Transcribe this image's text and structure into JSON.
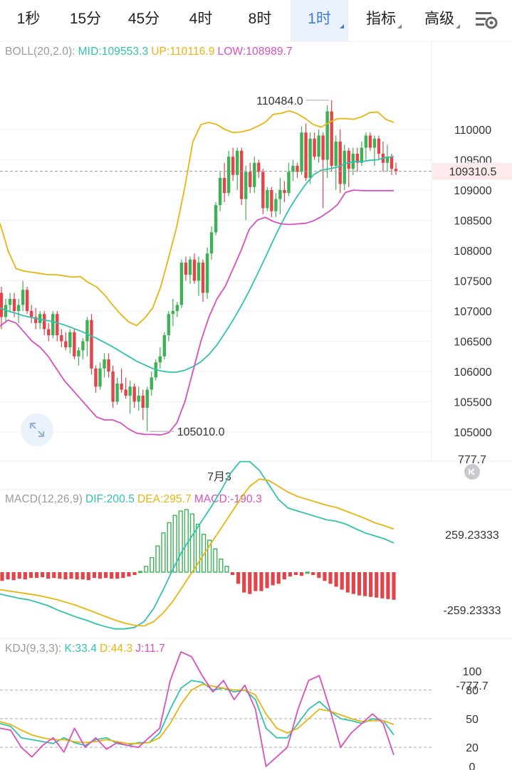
{
  "tabs": [
    {
      "label": "1秒",
      "active": false,
      "dropdown": false
    },
    {
      "label": "15分",
      "active": false,
      "dropdown": false
    },
    {
      "label": "45分",
      "active": false,
      "dropdown": false
    },
    {
      "label": "4时",
      "active": false,
      "dropdown": false
    },
    {
      "label": "8时",
      "active": false,
      "dropdown": false
    },
    {
      "label": "1时",
      "active": true,
      "dropdown": true
    },
    {
      "label": "指标",
      "active": false,
      "dropdown": true
    },
    {
      "label": "高级",
      "active": false,
      "dropdown": true
    }
  ],
  "settings_icon": "settings-gear-icon",
  "fullscreen_icon": "expand-arrows-icon",
  "scroll_latest_icon": "scroll-to-latest-icon",
  "colors": {
    "up": "#3db254",
    "down": "#e0454b",
    "mid": "#30c2b0",
    "upper": "#e8b50e",
    "lower": "#d94fbf",
    "active_tab": "#3a7bd5"
  },
  "boll": {
    "label": "BOLL(20,2.0):",
    "mid": "MID:109553.3",
    "up": "UP:110116.9",
    "low": "LOW:108989.7"
  },
  "macd": {
    "label": "MACD(12,26,9)",
    "dif": "DIF:200.5",
    "dea": "DEA:295.7",
    "macd": "MACD:-190.3"
  },
  "kdj": {
    "label": "KDJ(9,3,3):",
    "k": "K:33.4",
    "d": "D:44.3",
    "j": "J:11.7"
  },
  "chart_data": [
    {
      "type": "candlestick",
      "title": "BOLL(20,2.0)",
      "y_ticks": [
        "110000",
        "109500",
        "109000",
        "108500",
        "108000",
        "107500",
        "107000",
        "106500",
        "106000",
        "105500",
        "105000"
      ],
      "ylim": [
        104800,
        110800
      ],
      "x_label": "7月3",
      "current_price": "109310.5",
      "high_marker": "110484.0",
      "low_marker": "105010.0",
      "candles": [
        [
          107300,
          107400,
          106700,
          106900
        ],
        [
          106900,
          107200,
          106800,
          107100
        ],
        [
          107100,
          107300,
          107000,
          107200
        ],
        [
          107200,
          107300,
          106900,
          107000
        ],
        [
          107000,
          107200,
          106800,
          107100
        ],
        [
          107100,
          107500,
          107000,
          107350
        ],
        [
          107350,
          107400,
          106950,
          107000
        ],
        [
          107000,
          107100,
          106800,
          106900
        ],
        [
          106900,
          107050,
          106700,
          106800
        ],
        [
          106800,
          107000,
          106700,
          106950
        ],
        [
          106950,
          107000,
          106600,
          106700
        ],
        [
          106700,
          106800,
          106500,
          106600
        ],
        [
          106600,
          107000,
          106550,
          106950
        ],
        [
          106950,
          107000,
          106500,
          106600
        ],
        [
          106600,
          106700,
          106400,
          106500
        ],
        [
          106500,
          106650,
          106350,
          106400
        ],
        [
          106400,
          106700,
          106300,
          106650
        ],
        [
          106650,
          106700,
          106200,
          106250
        ],
        [
          106250,
          106400,
          106100,
          106350
        ],
        [
          106350,
          106550,
          106200,
          106500
        ],
        [
          106500,
          106900,
          106250,
          106850
        ],
        [
          106850,
          106950,
          105950,
          106050
        ],
        [
          106050,
          106100,
          105650,
          105750
        ],
        [
          105750,
          106150,
          105700,
          106050
        ],
        [
          106050,
          106300,
          105900,
          106200
        ],
        [
          106200,
          106300,
          105900,
          106000
        ],
        [
          106000,
          106100,
          105400,
          105500
        ],
        [
          105500,
          105900,
          105450,
          105800
        ],
        [
          105800,
          106050,
          105650,
          105700
        ],
        [
          105700,
          105900,
          105550,
          105600
        ],
        [
          105600,
          105850,
          105300,
          105750
        ],
        [
          105750,
          105800,
          105400,
          105500
        ],
        [
          105500,
          105750,
          105350,
          105600
        ],
        [
          105600,
          105700,
          105200,
          105400
        ],
        [
          105400,
          105750,
          105010,
          105700
        ],
        [
          105700,
          106000,
          105600,
          105900
        ],
        [
          105900,
          106200,
          105850,
          106150
        ],
        [
          106150,
          106400,
          106050,
          106250
        ],
        [
          106250,
          106650,
          106200,
          106600
        ],
        [
          106600,
          107000,
          106500,
          106950
        ],
        [
          106950,
          107200,
          106750,
          107000
        ],
        [
          107000,
          107150,
          106900,
          107100
        ],
        [
          107100,
          107850,
          107050,
          107800
        ],
        [
          107800,
          107900,
          107500,
          107600
        ],
        [
          107600,
          107900,
          107450,
          107850
        ],
        [
          107850,
          107950,
          107450,
          107500
        ],
        [
          107500,
          107900,
          107250,
          107800
        ],
        [
          107800,
          107850,
          107150,
          107300
        ],
        [
          107300,
          108050,
          107200,
          107950
        ],
        [
          107950,
          108400,
          107850,
          108300
        ],
        [
          108300,
          108800,
          108250,
          108750
        ],
        [
          108750,
          109300,
          108650,
          109200
        ],
        [
          109200,
          109450,
          108800,
          108950
        ],
        [
          108950,
          109650,
          108900,
          109550
        ],
        [
          109550,
          109700,
          109150,
          109250
        ],
        [
          109250,
          109700,
          109000,
          109650
        ],
        [
          109650,
          109700,
          108750,
          108850
        ],
        [
          108850,
          109400,
          108500,
          109300
        ],
        [
          109300,
          109450,
          108950,
          109050
        ],
        [
          109050,
          109550,
          108950,
          109450
        ],
        [
          109450,
          109500,
          109200,
          109300
        ],
        [
          109300,
          109350,
          108600,
          108700
        ],
        [
          108700,
          109050,
          108650,
          109000
        ],
        [
          109000,
          109050,
          108550,
          108650
        ],
        [
          108650,
          108950,
          108550,
          108850
        ],
        [
          108850,
          109200,
          108600,
          109000
        ],
        [
          109000,
          109150,
          108800,
          108950
        ],
        [
          108950,
          109450,
          108900,
          109300
        ],
        [
          109300,
          109500,
          109150,
          109400
        ],
        [
          109400,
          109450,
          109200,
          109300
        ],
        [
          109300,
          110050,
          109250,
          109950
        ],
        [
          109950,
          110100,
          109150,
          109200
        ],
        [
          109200,
          109950,
          109100,
          109850
        ],
        [
          109850,
          109950,
          109500,
          109550
        ],
        [
          109550,
          110000,
          109450,
          109900
        ],
        [
          109900,
          109950,
          108700,
          109500
        ],
        [
          109500,
          110400,
          109200,
          110300
        ],
        [
          110300,
          110484,
          109300,
          109400
        ],
        [
          109400,
          109900,
          109000,
          109800
        ],
        [
          109800,
          110000,
          108950,
          109100
        ],
        [
          109100,
          109750,
          109000,
          109650
        ],
        [
          109650,
          109700,
          109050,
          109350
        ],
        [
          109350,
          109700,
          109250,
          109600
        ],
        [
          109600,
          109700,
          109300,
          109450
        ],
        [
          109450,
          109800,
          109400,
          109700
        ],
        [
          109700,
          109950,
          109500,
          109900
        ],
        [
          109900,
          109950,
          109650,
          109700
        ],
        [
          109700,
          109900,
          109400,
          109850
        ],
        [
          109850,
          109900,
          109500,
          109600
        ],
        [
          109600,
          109800,
          109300,
          109450
        ],
        [
          109450,
          109750,
          109300,
          109550
        ],
        [
          109550,
          109600,
          109250,
          109350
        ],
        [
          109350,
          109450,
          109250,
          109310
        ]
      ],
      "series": [
        {
          "name": "MID",
          "values": [
            107050,
            107000,
            106960,
            106920,
            106890,
            106860,
            106840,
            106810,
            106770,
            106720,
            106670,
            106610,
            106550,
            106480,
            106410,
            106330,
            106250,
            106170,
            106110,
            106050,
            106010,
            105990,
            105990,
            106020,
            106080,
            106160,
            106280,
            106440,
            106640,
            106850,
            107080,
            107330,
            107600,
            107880,
            108170,
            108440,
            108690,
            108900,
            109090,
            109250,
            109330,
            109350,
            109380,
            109440,
            109470,
            109470,
            109490,
            109500,
            109540,
            109553
          ]
        },
        {
          "name": "UP",
          "values": [
            108450,
            108000,
            107700,
            107660,
            107640,
            107620,
            107600,
            107600,
            107580,
            107560,
            107570,
            107470,
            107400,
            107270,
            107100,
            106950,
            106820,
            106760,
            106880,
            107050,
            107400,
            107890,
            108400,
            109050,
            109800,
            110080,
            110120,
            110080,
            110000,
            109950,
            109960,
            109990,
            110050,
            110120,
            110250,
            110270,
            110310,
            110260,
            110180,
            110080,
            110040,
            110120,
            110180,
            110180,
            110170,
            110210,
            110280,
            110290,
            110170,
            110117
          ]
        },
        {
          "name": "LOW",
          "values": [
            106750,
            106850,
            106800,
            106650,
            106500,
            106400,
            106250,
            106050,
            105850,
            105700,
            105550,
            105400,
            105250,
            105200,
            105200,
            105150,
            105050,
            104980,
            104960,
            104960,
            104950,
            104990,
            105150,
            105500,
            106000,
            106500,
            106900,
            107200,
            107400,
            107700,
            108000,
            108350,
            108500,
            108550,
            108480,
            108440,
            108430,
            108440,
            108450,
            108490,
            108560,
            108650,
            108760,
            108960,
            109000,
            108990,
            108990,
            108990,
            108990,
            108990
          ]
        }
      ]
    },
    {
      "type": "bar",
      "title": "MACD(12,26,9)",
      "y_ticks": [
        "777.7",
        "259.23333",
        "-259.23333",
        "-777.7"
      ],
      "ylim": [
        -900,
        900
      ],
      "series": [
        {
          "name": "MACD",
          "values": [
            -60,
            -50,
            -55,
            -45,
            -50,
            -40,
            -40,
            -35,
            -45,
            -40,
            -45,
            -50,
            -45,
            -50,
            -50,
            -55,
            -40,
            -45,
            -40,
            -45,
            -45,
            -40,
            -30,
            -20,
            5,
            40,
            100,
            180,
            270,
            340,
            390,
            420,
            430,
            400,
            330,
            260,
            220,
            160,
            90,
            40,
            -20,
            -80,
            -140,
            -150,
            -130,
            -130,
            -110,
            -90,
            -80,
            -50,
            -30,
            -20,
            -25,
            0,
            -20,
            -40,
            -60,
            -80,
            -100,
            -120,
            -140,
            -150,
            -160,
            -165,
            -170,
            -175,
            -180,
            -185,
            -190
          ]
        },
        {
          "name": "DIF",
          "values": [
            -150,
            -165,
            -180,
            -190,
            -210,
            -230,
            -260,
            -285,
            -310,
            -330,
            -355,
            -375,
            -390,
            -390,
            -380,
            -340,
            -250,
            -120,
            20,
            150,
            250,
            350,
            450,
            560,
            680,
            760,
            760,
            700,
            600,
            500,
            440,
            420,
            400,
            380,
            360,
            350,
            330,
            300,
            270,
            250,
            230,
            200
          ]
        },
        {
          "name": "DEA",
          "values": [
            -120,
            -130,
            -140,
            -150,
            -160,
            -175,
            -190,
            -210,
            -230,
            -255,
            -280,
            -305,
            -330,
            -350,
            -365,
            -370,
            -340,
            -280,
            -200,
            -100,
            0,
            100,
            200,
            300,
            400,
            500,
            590,
            640,
            630,
            590,
            550,
            520,
            500,
            480,
            460,
            445,
            420,
            395,
            370,
            340,
            320,
            296
          ]
        }
      ]
    },
    {
      "type": "line",
      "title": "KDJ(9,3,3)",
      "y_ticks": [
        "100",
        "80",
        "50",
        "20",
        "0"
      ],
      "ylim": [
        0,
        100
      ],
      "series": [
        {
          "name": "K",
          "values": [
            45,
            42,
            30,
            28,
            26,
            24,
            30,
            25,
            22,
            28,
            30,
            24,
            22,
            25,
            25,
            35,
            60,
            82,
            90,
            88,
            80,
            82,
            78,
            80,
            70,
            40,
            30,
            30,
            45,
            60,
            68,
            58,
            50,
            48,
            45,
            50,
            48,
            33
          ]
        },
        {
          "name": "D",
          "values": [
            47,
            44,
            38,
            33,
            30,
            28,
            28,
            26,
            25,
            26,
            28,
            26,
            24,
            24,
            25,
            30,
            45,
            65,
            80,
            86,
            84,
            82,
            80,
            80,
            75,
            55,
            40,
            35,
            40,
            50,
            60,
            58,
            54,
            50,
            47,
            48,
            48,
            44
          ]
        },
        {
          "name": "J",
          "values": [
            40,
            38,
            20,
            10,
            22,
            30,
            15,
            40,
            20,
            30,
            18,
            25,
            22,
            20,
            30,
            40,
            90,
            120,
            115,
            95,
            78,
            90,
            70,
            85,
            60,
            0,
            10,
            20,
            60,
            90,
            95,
            60,
            20,
            35,
            45,
            55,
            45,
            12
          ]
        }
      ]
    }
  ]
}
